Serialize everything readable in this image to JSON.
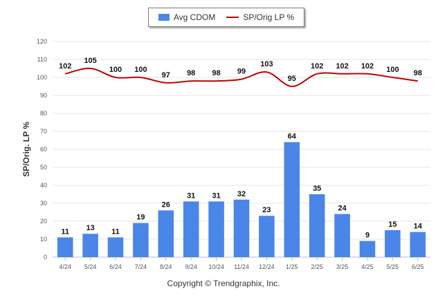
{
  "chart_data": {
    "type": "bar",
    "categories": [
      "4/24",
      "5/24",
      "6/24",
      "7/24",
      "8/24",
      "9/24",
      "10/24",
      "11/24",
      "12/24",
      "1/25",
      "2/25",
      "3/25",
      "4/25",
      "5/25",
      "6/25"
    ],
    "series": [
      {
        "name": "Avg CDOM",
        "type": "bar",
        "color": "#4a86e8",
        "values": [
          11,
          13,
          11,
          19,
          26,
          31,
          31,
          32,
          23,
          64,
          35,
          24,
          9,
          15,
          14
        ]
      },
      {
        "name": "SP/Orig LP %",
        "type": "line",
        "color": "#c00000",
        "values": [
          102,
          105,
          100,
          100,
          97,
          98,
          98,
          99,
          103,
          95,
          102,
          102,
          102,
          100,
          98
        ]
      }
    ],
    "ylabel": "SP/Orig. LP %",
    "xlabel": "",
    "ylim": [
      0,
      120
    ],
    "yticks": [
      0,
      10,
      20,
      30,
      40,
      50,
      60,
      70,
      80,
      90,
      100,
      110,
      120
    ],
    "grid": true,
    "legend_position": "top-center"
  },
  "footer": "Copyright © Trendgraphix, Inc."
}
